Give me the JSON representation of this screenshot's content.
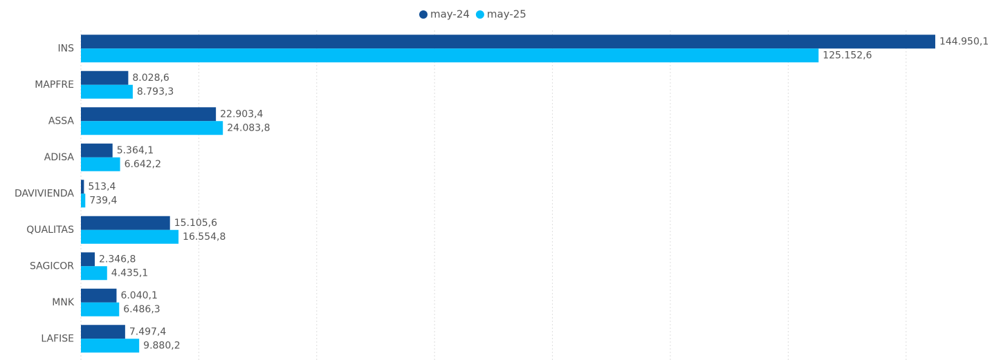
{
  "chart_data": {
    "type": "barh",
    "categories": [
      "INS",
      "MAPFRE",
      "ASSA",
      "ADISA",
      "DAVIVIENDA",
      "QUALITAS",
      "SAGICOR",
      "MNK",
      "LAFISE"
    ],
    "series": [
      {
        "name": "may-24",
        "color": "#124f96",
        "values": [
          144950.1,
          8028.6,
          22903.4,
          5364.1,
          513.4,
          15105.6,
          2346.8,
          6040.1,
          7497.4
        ],
        "value_labels": [
          "144.950,1",
          "8.028,6",
          "22.903,4",
          "5.364,1",
          "513,4",
          "15.105,6",
          "2.346,8",
          "6.040,1",
          "7.497,4"
        ]
      },
      {
        "name": "may-25",
        "color": "#01bdfa",
        "values": [
          125152.6,
          8793.3,
          24083.8,
          6642.2,
          739.4,
          16554.8,
          4435.1,
          6486.3,
          9880.2
        ],
        "value_labels": [
          "125.152,6",
          "8.793,3",
          "24.083,8",
          "6.642,2",
          "739,4",
          "16.554,8",
          "4.435,1",
          "6.486,3",
          "9.880,2"
        ]
      }
    ],
    "xlim": [
      0,
      150000
    ],
    "xticks": [
      0,
      20000,
      40000,
      60000,
      80000,
      100000,
      120000,
      140000
    ],
    "grid": true,
    "legend": "top"
  }
}
